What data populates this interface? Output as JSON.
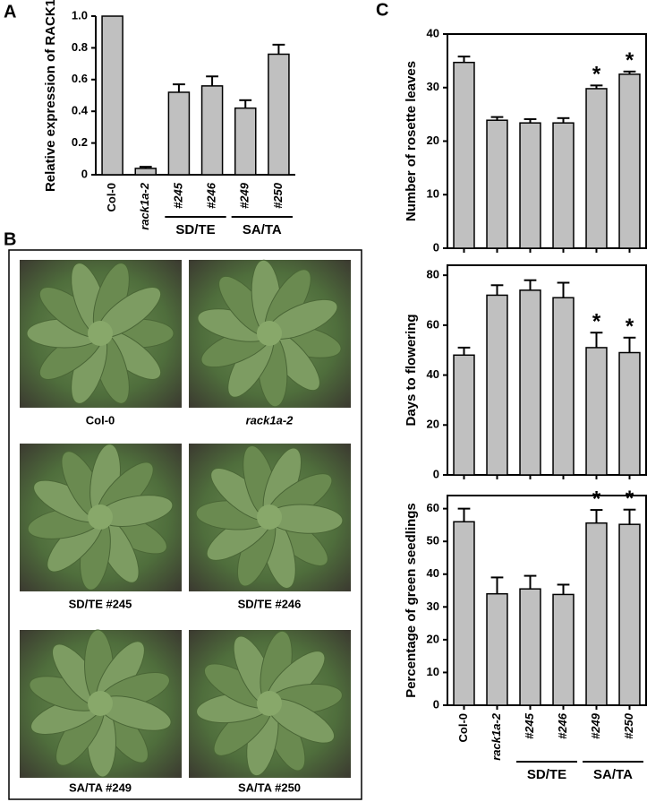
{
  "panel_labels": [
    "A",
    "B",
    "C"
  ],
  "chart_data": [
    {
      "type": "bar",
      "ylabel": "Relative expression of RACK1",
      "categories": [
        "Col-0",
        "rack1a-2",
        "#245",
        "#246",
        "#249",
        "#250"
      ],
      "values": [
        1.0,
        0.04,
        0.52,
        0.56,
        0.42,
        0.76
      ],
      "errors": [
        0,
        0.01,
        0.05,
        0.06,
        0.05,
        0.06
      ],
      "color": "#c0c0c0",
      "ylim": [
        0,
        1.0
      ],
      "yticks": [
        0,
        0.2,
        0.4,
        0.6,
        0.8,
        {
          "value": 1.0,
          "label": "1.0"
        }
      ],
      "groups": [
        {
          "label": "SD/TE",
          "categories": [
            "#245",
            "#246"
          ]
        },
        {
          "label": "SA/TA",
          "categories": [
            "#249",
            "#250"
          ]
        }
      ]
    },
    {
      "type": "bar",
      "ylabel": "Number of rosette leaves",
      "values": [
        34.7,
        23.9,
        23.4,
        23.4,
        29.8,
        32.5
      ],
      "errors": [
        1.1,
        0.6,
        0.7,
        0.9,
        0.6,
        0.5
      ],
      "significance": [
        null,
        null,
        null,
        null,
        "*",
        "*"
      ],
      "color": "#c0c0c0",
      "ylim": [
        0,
        40
      ],
      "yticks": [
        0,
        10,
        20,
        30,
        40
      ]
    },
    {
      "type": "bar",
      "ylabel": "Days to flowering",
      "values": [
        48,
        72,
        74,
        71,
        51,
        49
      ],
      "errors": [
        3,
        4,
        4,
        6,
        6,
        6
      ],
      "significance": [
        null,
        null,
        null,
        null,
        "*",
        "*"
      ],
      "color": "#c0c0c0",
      "ylim": [
        0,
        84
      ],
      "yticks": [
        0,
        20,
        40,
        60,
        80
      ]
    },
    {
      "type": "bar",
      "ylabel": "Percentage of green seedlings",
      "categories": [
        "Col-0",
        "rack1a-2",
        "#245",
        "#246",
        "#249",
        "#250"
      ],
      "values": [
        56,
        34,
        35.5,
        33.8,
        55.6,
        55.2
      ],
      "errors": [
        4,
        5,
        4,
        3,
        4,
        4.5
      ],
      "significance": [
        null,
        null,
        null,
        null,
        "*",
        "*"
      ],
      "color": "#c0c0c0",
      "ylim": [
        0,
        64
      ],
      "yticks": [
        0,
        10,
        20,
        30,
        40,
        50,
        60
      ],
      "groups": [
        {
          "label": "SD/TE",
          "categories": [
            "#245",
            "#246"
          ]
        },
        {
          "label": "SA/TA",
          "categories": [
            "#249",
            "#250"
          ]
        }
      ]
    }
  ],
  "photos": {
    "captions": [
      "Col-0",
      "rack1a-2",
      "SD/TE #245",
      "SD/TE #246",
      "SA/TA #249",
      "SA/TA #250"
    ]
  }
}
